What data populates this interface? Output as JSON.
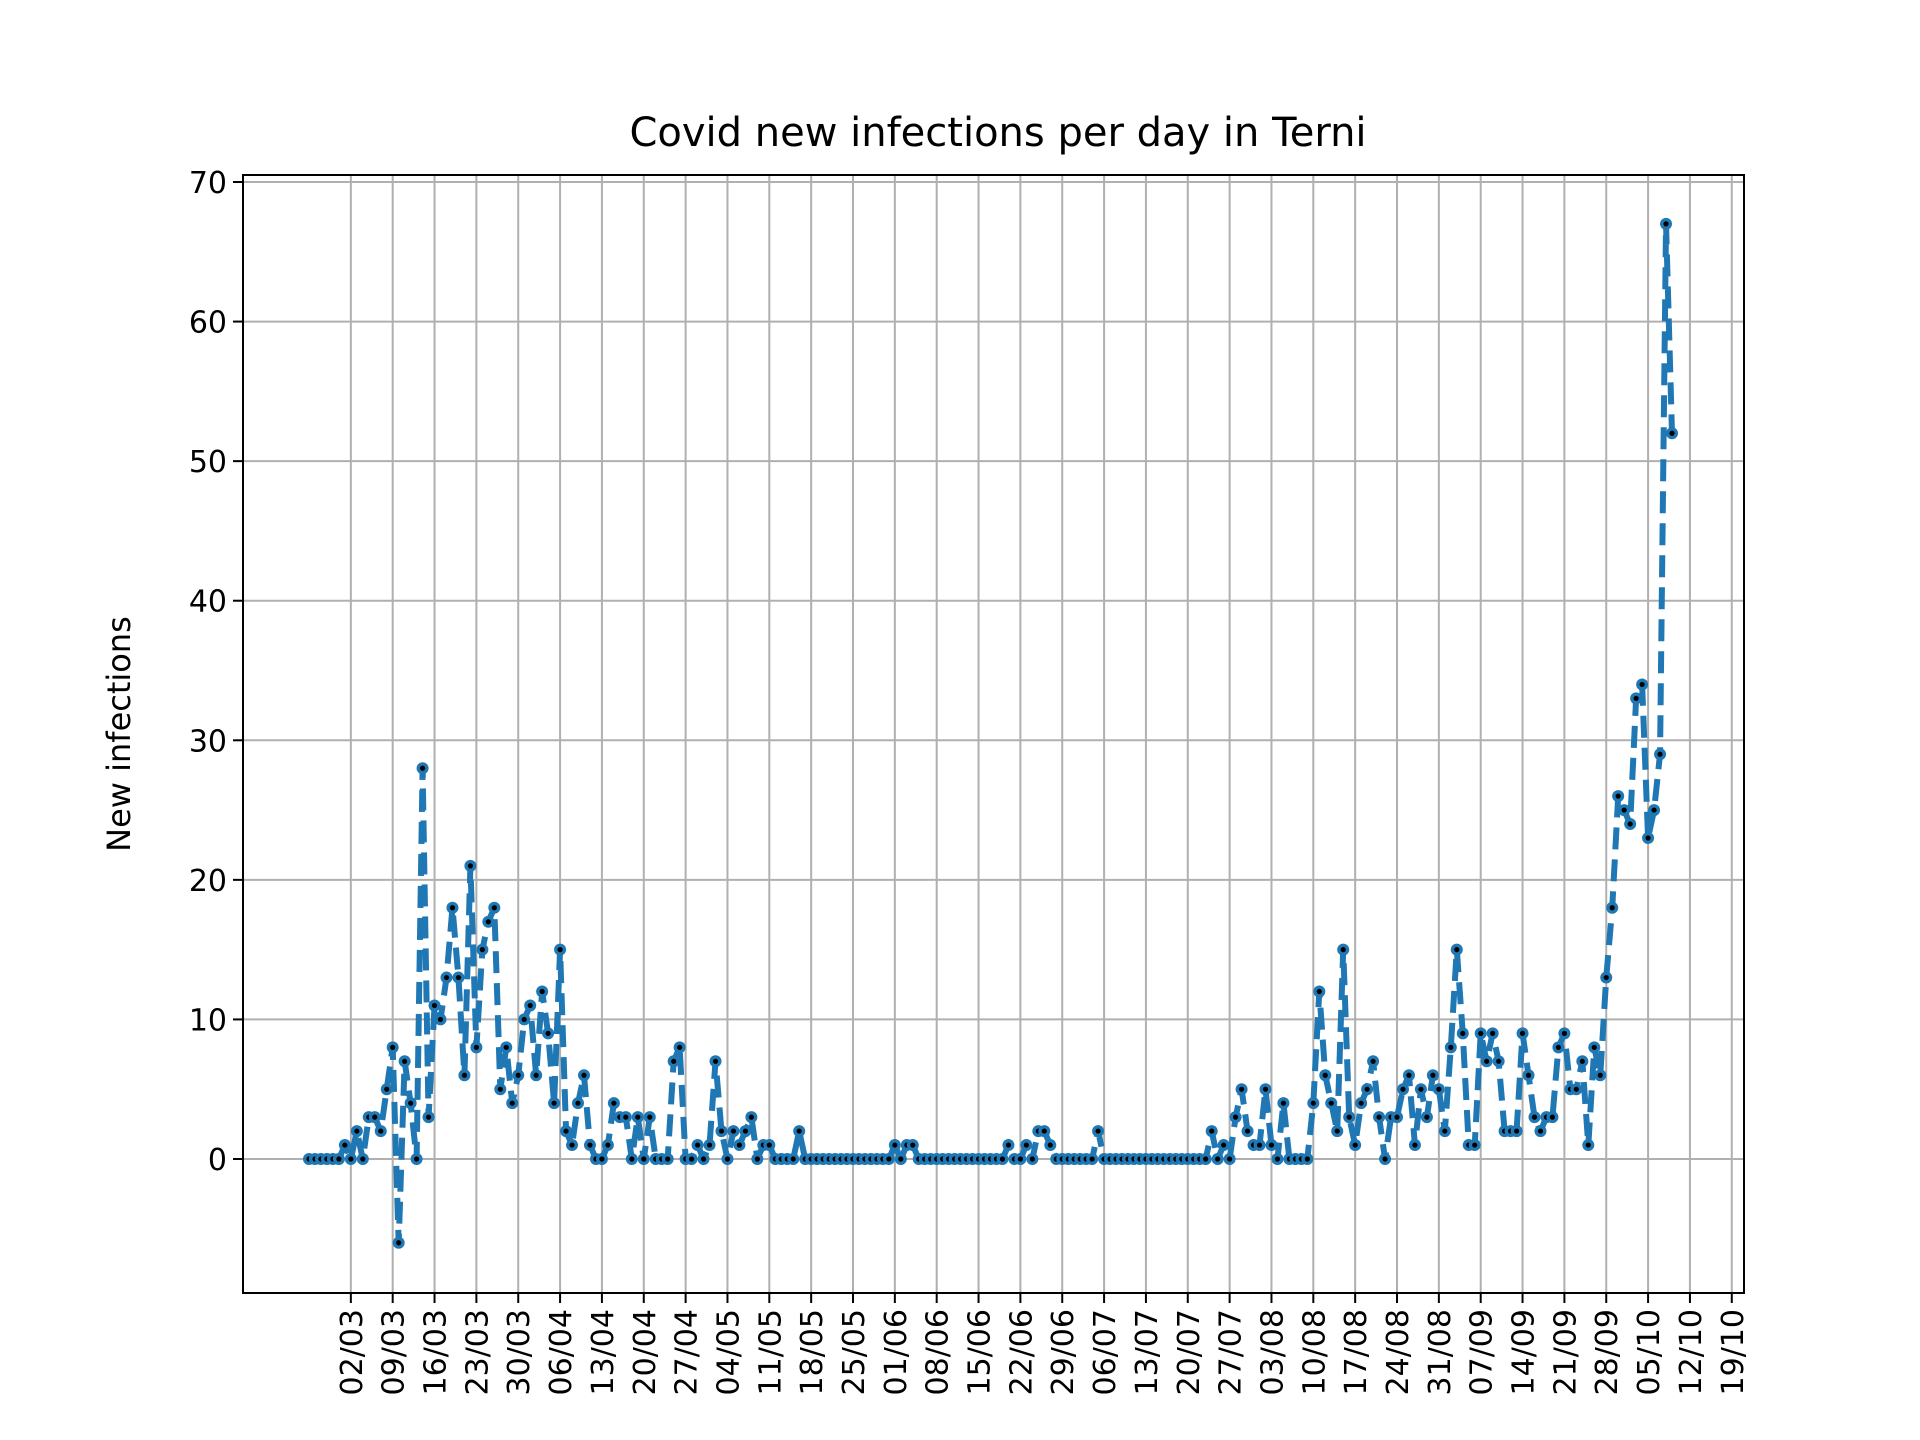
{
  "chart_data": {
    "type": "line",
    "title": "Covid new infections per day in Terni",
    "xlabel": "",
    "ylabel": "New infections",
    "ylim": [
      -10,
      70
    ],
    "yticks": [
      0,
      10,
      20,
      30,
      40,
      50,
      60,
      70
    ],
    "grid": true,
    "x_start_date": "2020-02-24",
    "xtick_labels": [
      "02/03",
      "09/03",
      "16/03",
      "23/03",
      "30/03",
      "06/04",
      "13/04",
      "20/04",
      "27/04",
      "04/05",
      "11/05",
      "18/05",
      "25/05",
      "01/06",
      "08/06",
      "15/06",
      "22/06",
      "29/06",
      "06/07",
      "13/07",
      "20/07",
      "27/07",
      "03/08",
      "10/08",
      "17/08",
      "24/08",
      "31/08",
      "07/09",
      "14/09",
      "21/09",
      "28/09",
      "05/10",
      "12/10",
      "19/10"
    ],
    "series": [
      {
        "color": "#1f77b4",
        "marker_color": "#000000",
        "values": [
          0,
          0,
          0,
          0,
          0,
          0,
          1,
          0,
          2,
          0,
          3,
          3,
          2,
          5,
          8,
          -6,
          7,
          4,
          0,
          28,
          3,
          11,
          10,
          13,
          18,
          13,
          6,
          21,
          8,
          15,
          17,
          18,
          5,
          8,
          4,
          6,
          10,
          11,
          6,
          12,
          9,
          4,
          15,
          2,
          1,
          4,
          6,
          1,
          0,
          0,
          1,
          4,
          3,
          3,
          0,
          3,
          0,
          3,
          0,
          0,
          0,
          7,
          8,
          0,
          0,
          1,
          0,
          1,
          7,
          2,
          0,
          2,
          1,
          2,
          3,
          0,
          1,
          1,
          0,
          0,
          0,
          0,
          2,
          0,
          0,
          0,
          0,
          0,
          0,
          0,
          0,
          0,
          0,
          0,
          0,
          0,
          0,
          0,
          1,
          0,
          1,
          1,
          0,
          0,
          0,
          0,
          0,
          0,
          0,
          0,
          0,
          0,
          0,
          0,
          0,
          0,
          0,
          1,
          0,
          0,
          1,
          0,
          2,
          2,
          1,
          0,
          0,
          0,
          0,
          0,
          0,
          0,
          2,
          0,
          0,
          0,
          0,
          0,
          0,
          0,
          0,
          0,
          0,
          0,
          0,
          0,
          0,
          0,
          0,
          0,
          0,
          2,
          0,
          1,
          0,
          3,
          5,
          2,
          1,
          1,
          5,
          1,
          0,
          4,
          0,
          0,
          0,
          0,
          4,
          12,
          6,
          4,
          2,
          15,
          3,
          1,
          4,
          5,
          7,
          3,
          0,
          3,
          3,
          5,
          6,
          1,
          5,
          3,
          6,
          5,
          2,
          8,
          15,
          9,
          1,
          1,
          9,
          7,
          9,
          7,
          2,
          2,
          2,
          9,
          6,
          3,
          2,
          3,
          3,
          8,
          9,
          5,
          5,
          7,
          1,
          8,
          6,
          13,
          18,
          26,
          25,
          24,
          33,
          34,
          23,
          25,
          29,
          67,
          52
        ]
      }
    ]
  }
}
